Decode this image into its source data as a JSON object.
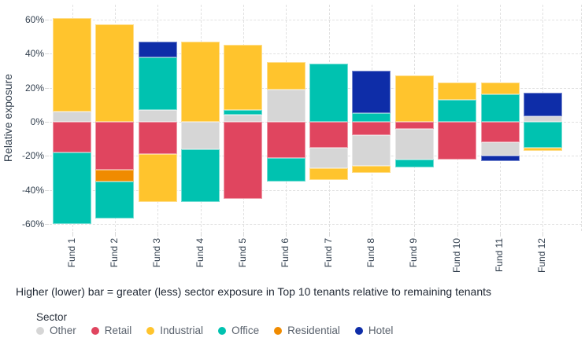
{
  "caption": "Higher (lower) bar = greater (less) sector exposure in Top 10 tenants relative to remaining tenants",
  "legend": {
    "title": "Sector",
    "items": [
      {
        "label": "Other",
        "color": "#d6d6d6"
      },
      {
        "label": "Retail",
        "color": "#e0455f"
      },
      {
        "label": "Industrial",
        "color": "#ffc42d"
      },
      {
        "label": "Office",
        "color": "#00c2b0"
      },
      {
        "label": "Residential",
        "color": "#f08b00"
      },
      {
        "label": "Hotel",
        "color": "#0e2da8"
      }
    ]
  },
  "chart_data": {
    "type": "bar",
    "stacked": true,
    "diverging": true,
    "title": "",
    "xlabel": "",
    "ylabel": "Relative exposure",
    "ylim": [
      -66,
      66
    ],
    "grid": "dashed",
    "legend_position": "bottom",
    "y_ticks": [
      {
        "label": "60%",
        "value": 60
      },
      {
        "label": "40%",
        "value": 40
      },
      {
        "label": "20%",
        "value": 20
      },
      {
        "label": "0%",
        "value": 0
      },
      {
        "label": "-20%",
        "value": -20
      },
      {
        "label": "-40%",
        "value": -40
      },
      {
        "label": "-60%",
        "value": -60
      }
    ],
    "categories": [
      "Fund 1",
      "Fund 2",
      "Fund 3",
      "Fund 4",
      "Fund 5",
      "Fund 6",
      "Fund 7",
      "Fund 8",
      "Fund 9",
      "Fund 10",
      "Fund 11",
      "Fund 12"
    ],
    "sector_colors": {
      "Other": "#d6d6d6",
      "Retail": "#e0455f",
      "Industrial": "#ffc42d",
      "Office": "#00c2b0",
      "Residential": "#f08b00",
      "Hotel": "#0e2da8"
    },
    "funds": [
      {
        "name": "Fund 1",
        "positive": [
          {
            "sector": "Other",
            "value": 6
          },
          {
            "sector": "Industrial",
            "value": 55
          }
        ],
        "negative": [
          {
            "sector": "Retail",
            "value": -18
          },
          {
            "sector": "Office",
            "value": -42
          }
        ]
      },
      {
        "name": "Fund 2",
        "positive": [
          {
            "sector": "Industrial",
            "value": 57
          }
        ],
        "negative": [
          {
            "sector": "Retail",
            "value": -28
          },
          {
            "sector": "Residential",
            "value": -7
          },
          {
            "sector": "Office",
            "value": -22
          }
        ]
      },
      {
        "name": "Fund 3",
        "positive": [
          {
            "sector": "Other",
            "value": 7
          },
          {
            "sector": "Office",
            "value": 31
          },
          {
            "sector": "Hotel",
            "value": 9
          }
        ],
        "negative": [
          {
            "sector": "Retail",
            "value": -19
          },
          {
            "sector": "Industrial",
            "value": -28
          }
        ]
      },
      {
        "name": "Fund 4",
        "positive": [
          {
            "sector": "Industrial",
            "value": 47
          }
        ],
        "negative": [
          {
            "sector": "Other",
            "value": -16
          },
          {
            "sector": "Office",
            "value": -31
          }
        ]
      },
      {
        "name": "Fund 5",
        "positive": [
          {
            "sector": "Other",
            "value": 4
          },
          {
            "sector": "Office",
            "value": 3
          },
          {
            "sector": "Industrial",
            "value": 38
          }
        ],
        "negative": [
          {
            "sector": "Retail",
            "value": -45
          }
        ]
      },
      {
        "name": "Fund 6",
        "positive": [
          {
            "sector": "Other",
            "value": 19
          },
          {
            "sector": "Industrial",
            "value": 16
          }
        ],
        "negative": [
          {
            "sector": "Retail",
            "value": -21
          },
          {
            "sector": "Office",
            "value": -14
          }
        ]
      },
      {
        "name": "Fund 7",
        "positive": [
          {
            "sector": "Office",
            "value": 34
          }
        ],
        "negative": [
          {
            "sector": "Retail",
            "value": -15
          },
          {
            "sector": "Other",
            "value": -12
          },
          {
            "sector": "Industrial",
            "value": -7
          }
        ]
      },
      {
        "name": "Fund 8",
        "positive": [
          {
            "sector": "Office",
            "value": 5
          },
          {
            "sector": "Hotel",
            "value": 25
          }
        ],
        "negative": [
          {
            "sector": "Retail",
            "value": -8
          },
          {
            "sector": "Other",
            "value": -18
          },
          {
            "sector": "Industrial",
            "value": -4
          }
        ]
      },
      {
        "name": "Fund 9",
        "positive": [
          {
            "sector": "Industrial",
            "value": 27
          }
        ],
        "negative": [
          {
            "sector": "Retail",
            "value": -4
          },
          {
            "sector": "Other",
            "value": -18
          },
          {
            "sector": "Office",
            "value": -5
          }
        ]
      },
      {
        "name": "Fund 10",
        "positive": [
          {
            "sector": "Office",
            "value": 13
          },
          {
            "sector": "Industrial",
            "value": 10
          }
        ],
        "negative": [
          {
            "sector": "Retail",
            "value": -22
          }
        ]
      },
      {
        "name": "Fund 11",
        "positive": [
          {
            "sector": "Office",
            "value": 16
          },
          {
            "sector": "Industrial",
            "value": 7
          }
        ],
        "negative": [
          {
            "sector": "Retail",
            "value": -12
          },
          {
            "sector": "Other",
            "value": -8
          },
          {
            "sector": "Hotel",
            "value": -3
          }
        ]
      },
      {
        "name": "Fund 12",
        "positive": [
          {
            "sector": "Other",
            "value": 3
          },
          {
            "sector": "Hotel",
            "value": 14
          }
        ],
        "negative": [
          {
            "sector": "Office",
            "value": -15
          },
          {
            "sector": "Industrial",
            "value": -2
          }
        ]
      }
    ]
  }
}
